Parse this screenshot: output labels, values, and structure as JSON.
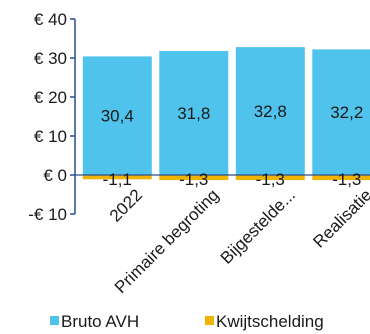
{
  "chart_data": {
    "type": "bar",
    "stacked": true,
    "categories": [
      "2022",
      "Primaire begroting",
      "Bijgestelde...",
      "Realisatie"
    ],
    "series": [
      {
        "name": "Bruto AVH",
        "color": "#4fc3eb",
        "values": [
          30.4,
          31.8,
          32.8,
          32.2
        ],
        "labels": [
          "30,4",
          "31,8",
          "32,8",
          "32,2"
        ]
      },
      {
        "name": "Kwijtschelding",
        "color": "#f0b400",
        "values": [
          -1.1,
          -1.3,
          -1.3,
          -1.3
        ],
        "labels": [
          "-1,1",
          "-1,3",
          "-1,3",
          "-1,3"
        ]
      }
    ],
    "y_ticks": [
      {
        "value": 40,
        "label": "€ 40"
      },
      {
        "value": 30,
        "label": "€ 30"
      },
      {
        "value": 20,
        "label": "€ 20"
      },
      {
        "value": 10,
        "label": "€ 10"
      },
      {
        "value": 0,
        "label": "€ 0"
      },
      {
        "value": -10,
        "label": "-€ 10"
      }
    ],
    "ylim": [
      -10,
      40
    ],
    "grid": false,
    "legend_position": "bottom",
    "title": "",
    "xlabel": "",
    "ylabel": ""
  }
}
